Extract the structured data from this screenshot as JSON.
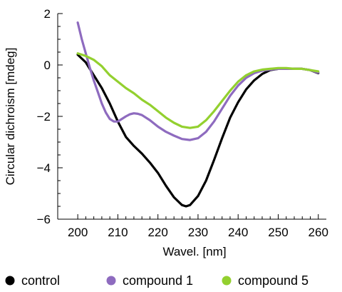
{
  "chart_data": {
    "type": "line",
    "xlabel": "Wavel. [nm]",
    "ylabel": "Circular dichroism [mdeg]",
    "xlim": [
      195,
      262
    ],
    "ylim": [
      -6,
      2
    ],
    "xticks": [
      200,
      210,
      220,
      230,
      240,
      250,
      260
    ],
    "yticks": [
      2,
      0,
      -2,
      -4,
      -6
    ],
    "x_minor_step": 2,
    "y_minor_step": 0.5,
    "grid": false,
    "legend_position": "bottom",
    "series": [
      {
        "name": "control",
        "color": "#000000",
        "x": [
          200,
          202,
          204,
          206,
          208,
          210,
          212,
          214,
          216,
          218,
          220,
          222,
          224,
          226,
          227,
          228,
          230,
          232,
          234,
          236,
          238,
          240,
          242,
          244,
          246,
          248,
          250,
          252,
          254,
          256,
          258,
          260
        ],
        "y": [
          0.4,
          0.1,
          -0.4,
          -0.9,
          -1.5,
          -2.2,
          -2.8,
          -3.15,
          -3.45,
          -3.8,
          -4.2,
          -4.7,
          -5.15,
          -5.45,
          -5.5,
          -5.45,
          -5.1,
          -4.5,
          -3.7,
          -2.85,
          -2.05,
          -1.45,
          -0.95,
          -0.6,
          -0.35,
          -0.2,
          -0.15,
          -0.15,
          -0.15,
          -0.15,
          -0.2,
          -0.32
        ]
      },
      {
        "name": "compound 1",
        "color": "#8e6bbf",
        "x": [
          200,
          201,
          202,
          203,
          204,
          205,
          206,
          207,
          208,
          209,
          210,
          211,
          212,
          213,
          214,
          215,
          216,
          218,
          220,
          222,
          224,
          226,
          228,
          230,
          232,
          234,
          236,
          238,
          240,
          242,
          244,
          246,
          248,
          250,
          252,
          254,
          256,
          258,
          260
        ],
        "y": [
          1.65,
          1.0,
          0.45,
          -0.1,
          -0.6,
          -1.05,
          -1.5,
          -1.85,
          -2.1,
          -2.2,
          -2.2,
          -2.1,
          -2.0,
          -1.92,
          -1.88,
          -1.9,
          -1.95,
          -2.15,
          -2.4,
          -2.6,
          -2.75,
          -2.88,
          -2.92,
          -2.85,
          -2.6,
          -2.2,
          -1.7,
          -1.2,
          -0.8,
          -0.5,
          -0.32,
          -0.22,
          -0.18,
          -0.15,
          -0.15,
          -0.15,
          -0.15,
          -0.2,
          -0.3
        ]
      },
      {
        "name": "compound 5",
        "color": "#93d02f",
        "x": [
          200,
          202,
          204,
          206,
          208,
          210,
          212,
          214,
          216,
          218,
          220,
          222,
          224,
          226,
          228,
          230,
          232,
          234,
          236,
          238,
          240,
          242,
          244,
          246,
          248,
          250,
          252,
          254,
          256,
          258,
          260
        ],
        "y": [
          0.45,
          0.35,
          0.2,
          -0.05,
          -0.4,
          -0.65,
          -0.9,
          -1.1,
          -1.35,
          -1.55,
          -1.8,
          -2.05,
          -2.25,
          -2.4,
          -2.45,
          -2.4,
          -2.15,
          -1.8,
          -1.4,
          -1.0,
          -0.65,
          -0.4,
          -0.25,
          -0.18,
          -0.15,
          -0.12,
          -0.12,
          -0.15,
          -0.15,
          -0.2,
          -0.25
        ]
      }
    ]
  }
}
